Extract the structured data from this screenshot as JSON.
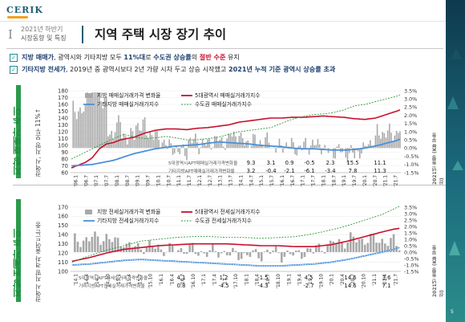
{
  "header": {
    "logo": "CERIK",
    "section_numeral": "I",
    "section_line1": "2021년 하반기",
    "section_line2": "시장동향 및 특징",
    "title": "지역 주택 시장 장기 추이"
  },
  "bullets": [
    {
      "bold1": "지방 매매가",
      "text1": ", 광역시와 기타지방 모두 ",
      "bold2": "11%대",
      "text2": "로 ",
      "bold3": "수도권 상승률",
      "text3": "의 ",
      "red": "절반 수준",
      "text4": " 유지"
    },
    {
      "bold1": "기타지방 전세가",
      "text1": ", 2019년 중 광역시보다 2년 가량 시차 두고 상승 시작했고 ",
      "bold2": "2021년 누적 기준 광역시 상승률 초과",
      "text2": ""
    }
  ],
  "panels": [
    {
      "label_main": "지방 매매가 추이",
      "label_sub": "광역시, 지방 모두 11%↑"
    },
    {
      "label_main": "지방 전세가 추이",
      "label_sub": "광역시 지방 격차 줄어드는 중"
    }
  ],
  "side": {
    "note_top": "2021년 동향 (KB 부동산)",
    "note_bottom": "2021년 동향 (KB 부동산)",
    "page_number": "5"
  },
  "colors": {
    "bars": "#a8a8a8",
    "metro": "#c8102e",
    "other": "#4a90d9",
    "capital": "#2e9a3a",
    "accent_green": "#1d8a3e"
  },
  "chart_data": [
    {
      "type": "bar+line",
      "title": "",
      "legend": [
        "지방 매매실거래가격 변화율",
        "5대광역시 매매실거래가지수",
        "기타지방 매매실거래가지수",
        "수도권 매매실거래가지수"
      ],
      "left_axis": {
        "ticks": [
          "60",
          "70",
          "80",
          "90",
          "100",
          "110",
          "120",
          "130",
          "140",
          "150",
          "160",
          "170",
          "180"
        ],
        "range": [
          60,
          180
        ]
      },
      "right_axis": {
        "ticks": [
          "-1.5%",
          "-1.0%",
          "-0.5%",
          "0.0%",
          "0.5%",
          "1.0%",
          "1.5%",
          "2.0%",
          "2.5%",
          "3.0%",
          "3.5%"
        ],
        "range": [
          -1.5,
          3.5
        ]
      },
      "x_ticks": [
        "'06.1",
        "'06.7",
        "'07.1",
        "'07.7",
        "'08.1",
        "'08.7",
        "'09.1",
        "'09.7",
        "'10.1",
        "'10.7",
        "'11.1",
        "'11.7",
        "'12.1",
        "'12.7",
        "'13.1",
        "'13.7",
        "'14.1",
        "'14.7",
        "'15.1",
        "'15.7",
        "'16.1",
        "'16.7",
        "'17.1",
        "'17.7",
        "'18.1",
        "'18.7",
        "'19.1",
        "'19.7",
        "'20.1",
        "'20.7",
        "'21.1",
        "'21.7"
      ],
      "series": [
        {
          "name": "5대광역시 매매실거래가지수",
          "anchors": [
            [
              0,
              67
            ],
            [
              8,
              75
            ],
            [
              12,
              82
            ],
            [
              16,
              95
            ],
            [
              20,
              102
            ],
            [
              24,
              104
            ],
            [
              28,
              108
            ],
            [
              30,
              109
            ],
            [
              36,
              112
            ],
            [
              42,
              118
            ],
            [
              48,
              122
            ],
            [
              54,
              124
            ],
            [
              60,
              124
            ],
            [
              66,
              123
            ],
            [
              72,
              125
            ],
            [
              78,
              126
            ],
            [
              84,
              128
            ],
            [
              90,
              130
            ],
            [
              96,
              134
            ],
            [
              102,
              136
            ],
            [
              108,
              138
            ],
            [
              114,
              140
            ],
            [
              120,
              140
            ],
            [
              126,
              141
            ],
            [
              132,
              141
            ],
            [
              138,
              142
            ],
            [
              144,
              143
            ],
            [
              150,
              142
            ],
            [
              156,
              141
            ],
            [
              162,
              139
            ],
            [
              168,
              138
            ],
            [
              174,
              140
            ],
            [
              180,
              145
            ],
            [
              186,
              150
            ],
            [
              188,
              152
            ]
          ]
        },
        {
          "name": "기타지방 매매실거래가지수",
          "anchors": [
            [
              0,
              70
            ],
            [
              12,
              72
            ],
            [
              24,
              78
            ],
            [
              36,
              88
            ],
            [
              48,
              95
            ],
            [
              60,
              99
            ],
            [
              66,
              100
            ],
            [
              72,
              101
            ],
            [
              78,
              103
            ],
            [
              84,
              105
            ],
            [
              90,
              104
            ],
            [
              96,
              103
            ],
            [
              102,
              102
            ],
            [
              108,
              100
            ],
            [
              114,
              99
            ],
            [
              120,
              98
            ],
            [
              126,
              96
            ],
            [
              132,
              95
            ],
            [
              138,
              95
            ],
            [
              144,
              94
            ],
            [
              150,
              93
            ],
            [
              156,
              93
            ],
            [
              162,
              94
            ],
            [
              168,
              96
            ],
            [
              174,
              99
            ],
            [
              180,
              103
            ],
            [
              186,
              107
            ],
            [
              188,
              109
            ]
          ]
        },
        {
          "name": "수도권 매매실거래가지수",
          "anchors": [
            [
              0,
              80
            ],
            [
              12,
              95
            ],
            [
              24,
              110
            ],
            [
              30,
              116
            ],
            [
              36,
              112
            ],
            [
              42,
              110
            ],
            [
              48,
              111
            ],
            [
              54,
              113
            ],
            [
              60,
              111
            ],
            [
              66,
              108
            ],
            [
              72,
              108
            ],
            [
              78,
              110
            ],
            [
              84,
              112
            ],
            [
              90,
              116
            ],
            [
              96,
              120
            ],
            [
              102,
              122
            ],
            [
              108,
              124
            ],
            [
              114,
              126
            ],
            [
              120,
              132
            ],
            [
              126,
              138
            ],
            [
              132,
              142
            ],
            [
              138,
              145
            ],
            [
              144,
              146
            ],
            [
              150,
              148
            ],
            [
              156,
              152
            ],
            [
              162,
              158
            ],
            [
              168,
              160
            ],
            [
              174,
              164
            ],
            [
              180,
              168
            ],
            [
              186,
              172
            ],
            [
              188,
              174
            ]
          ]
        }
      ],
      "table_rows": [
        {
          "label": "5대광역시APT매매실거래가격변화율",
          "values": [
            "9.3",
            "3.1",
            "0.9",
            "-0.5",
            "2.3",
            "15.5",
            "11.1"
          ]
        },
        {
          "label": "기타지방APT매매실거래가격변화율",
          "values": [
            "3.2",
            "-0.4",
            "-2.1",
            "-6.1",
            "-3.4",
            "7.8",
            "11.3"
          ]
        }
      ]
    },
    {
      "type": "bar+line",
      "title": "",
      "legend": [
        "지방 전세실거래가격 변화율",
        "5대광역시 전세실거래가지수",
        "기타지방 전세실거래가지수",
        "수도권 전세실거래가지수"
      ],
      "left_axis": {
        "ticks": [
          "100",
          "110",
          "120",
          "130",
          "140",
          "150",
          "160",
          "170"
        ],
        "range": [
          100,
          170
        ]
      },
      "right_axis": {
        "ticks": [
          "-1.5%",
          "-1.0%",
          "-0.5%",
          "0.0%",
          "0.5%",
          "1.0%",
          "1.5%",
          "2.0%",
          "2.5%",
          "3.0%",
          "3.5%"
        ],
        "range": [
          -1.5,
          3.5
        ]
      },
      "x_ticks": [
        "'14.1",
        "'14.4",
        "'14.7",
        "'14.10",
        "'15.1",
        "'15.4",
        "'15.7",
        "'15.10",
        "'16.1",
        "'16.4",
        "'16.7",
        "'16.10",
        "'17.1",
        "'17.4",
        "'17.7",
        "'17.10",
        "'18.1",
        "'18.4",
        "'18.7",
        "'18.10",
        "'19.1",
        "'19.4",
        "'19.7",
        "'19.10",
        "'20.1",
        "'20.4",
        "'20.7",
        "'20.10",
        "'21.1",
        "'21.4",
        "'21.7"
      ],
      "series": [
        {
          "name": "5대광역시 전세실거래가지수",
          "anchors": [
            [
              0,
              111
            ],
            [
              6,
              115
            ],
            [
              12,
              120
            ],
            [
              18,
              124
            ],
            [
              24,
              126
            ],
            [
              30,
              128
            ],
            [
              36,
              129
            ],
            [
              42,
              130
            ],
            [
              48,
              130
            ],
            [
              54,
              130
            ],
            [
              60,
              129
            ],
            [
              66,
              128
            ],
            [
              72,
              128
            ],
            [
              78,
              127
            ],
            [
              84,
              127
            ],
            [
              90,
              129
            ],
            [
              96,
              133
            ],
            [
              102,
              138
            ],
            [
              108,
              143
            ],
            [
              112,
              146
            ],
            [
              114,
              147
            ]
          ]
        },
        {
          "name": "기타지방 전세실거래가지수",
          "anchors": [
            [
              0,
              107
            ],
            [
              6,
              108
            ],
            [
              12,
              110
            ],
            [
              18,
              112
            ],
            [
              24,
              113
            ],
            [
              30,
              112
            ],
            [
              36,
              111
            ],
            [
              42,
              110
            ],
            [
              48,
              109
            ],
            [
              54,
              108
            ],
            [
              60,
              107
            ],
            [
              66,
              106
            ],
            [
              72,
              106
            ],
            [
              78,
              107
            ],
            [
              84,
              108
            ],
            [
              90,
              110
            ],
            [
              96,
              113
            ],
            [
              102,
              117
            ],
            [
              108,
              121
            ],
            [
              112,
              124
            ],
            [
              114,
              126
            ]
          ]
        },
        {
          "name": "수도권 전세실거래가지수",
          "anchors": [
            [
              0,
              110
            ],
            [
              6,
              117
            ],
            [
              12,
              123
            ],
            [
              18,
              128
            ],
            [
              24,
              133
            ],
            [
              30,
              135
            ],
            [
              36,
              137
            ],
            [
              42,
              138
            ],
            [
              48,
              138
            ],
            [
              54,
              137
            ],
            [
              60,
              137
            ],
            [
              66,
              136
            ],
            [
              72,
              137
            ],
            [
              78,
              138
            ],
            [
              84,
              141
            ],
            [
              90,
              145
            ],
            [
              96,
              150
            ],
            [
              102,
              156
            ],
            [
              108,
              162
            ],
            [
              112,
              168
            ],
            [
              114,
              171
            ]
          ]
        }
      ],
      "table_rows": [
        {
          "label": "5대광역시APT전세실거래가격변화율",
          "values": [
            "4.1",
            "1.2",
            "-1.5",
            "4.5",
            "14.6",
            "3.6"
          ]
        },
        {
          "label": "기타지방APT전세실거래가격변화율",
          "values": [
            "0.8",
            "-4.5",
            "-4.3",
            "-2.7",
            "14.6",
            "7.1"
          ]
        }
      ]
    }
  ]
}
